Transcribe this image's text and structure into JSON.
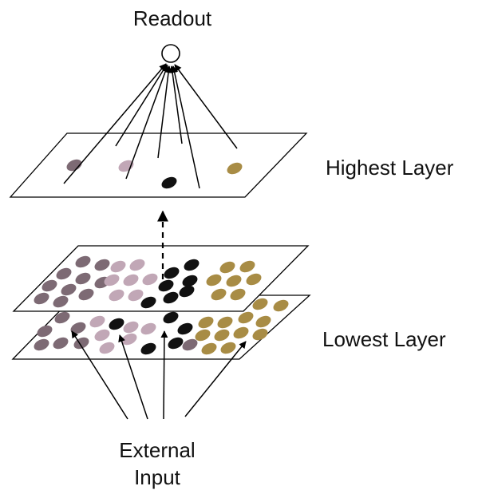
{
  "labels": {
    "readout": "Readout",
    "highest_layer": "Highest Layer",
    "lowest_layer": "Lowest Layer",
    "external_line1": "External",
    "external_line2": "Input"
  },
  "colors": {
    "group_a": "#7d6a74",
    "group_b": "#c1a7b6",
    "group_c": "#111111",
    "group_d": "#a88c45",
    "line": "#000000"
  }
}
